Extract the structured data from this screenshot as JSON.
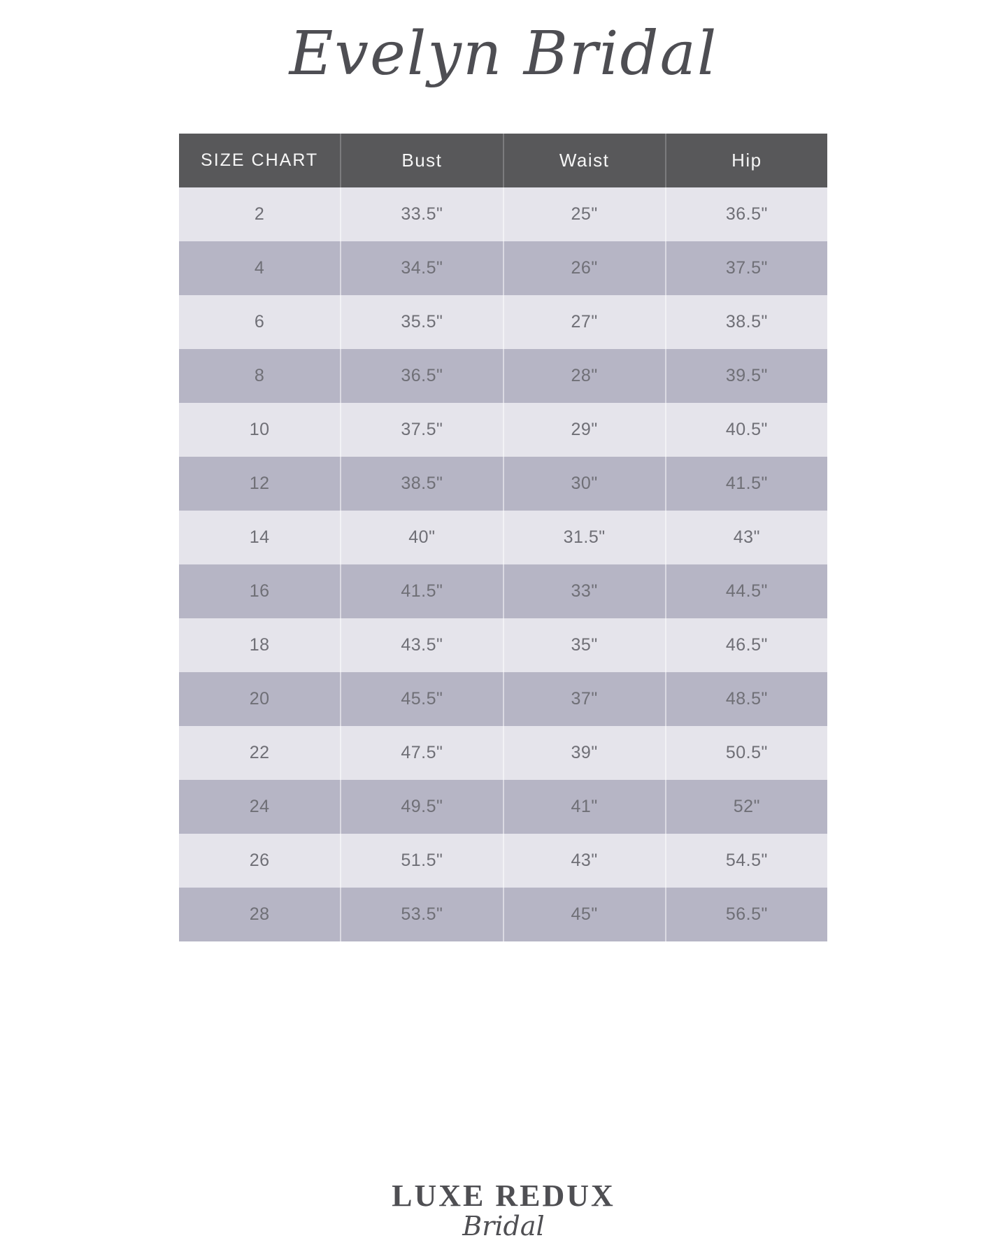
{
  "brand": {
    "title": "Evelyn Bridal"
  },
  "table": {
    "headers": [
      "SIZE CHART",
      "Bust",
      "Waist",
      "Hip"
    ],
    "rows": [
      [
        "2",
        "33.5\"",
        "25\"",
        "36.5\""
      ],
      [
        "4",
        "34.5\"",
        "26\"",
        "37.5\""
      ],
      [
        "6",
        "35.5\"",
        "27\"",
        "38.5\""
      ],
      [
        "8",
        "36.5\"",
        "28\"",
        "39.5\""
      ],
      [
        "10",
        "37.5\"",
        "29\"",
        "40.5\""
      ],
      [
        "12",
        "38.5\"",
        "30\"",
        "41.5\""
      ],
      [
        "14",
        "40\"",
        "31.5\"",
        "43\""
      ],
      [
        "16",
        "41.5\"",
        "33\"",
        "44.5\""
      ],
      [
        "18",
        "43.5\"",
        "35\"",
        "46.5\""
      ],
      [
        "20",
        "45.5\"",
        "37\"",
        "48.5\""
      ],
      [
        "22",
        "47.5\"",
        "39\"",
        "50.5\""
      ],
      [
        "24",
        "49.5\"",
        "41\"",
        "52\""
      ],
      [
        "26",
        "51.5\"",
        "43\"",
        "54.5\""
      ],
      [
        "28",
        "53.5\"",
        "45\"",
        "56.5\""
      ]
    ]
  },
  "footer": {
    "logo_line1": "LUXE REDUX",
    "logo_line2": "Bridal"
  },
  "colors": {
    "header_bg": "#58585a",
    "row_light": "#e5e4eb",
    "row_dark": "#b6b5c5",
    "header_text": "#f6f6f6",
    "cell_text": "#6f6f76",
    "brand_text": "#4e4e53"
  }
}
